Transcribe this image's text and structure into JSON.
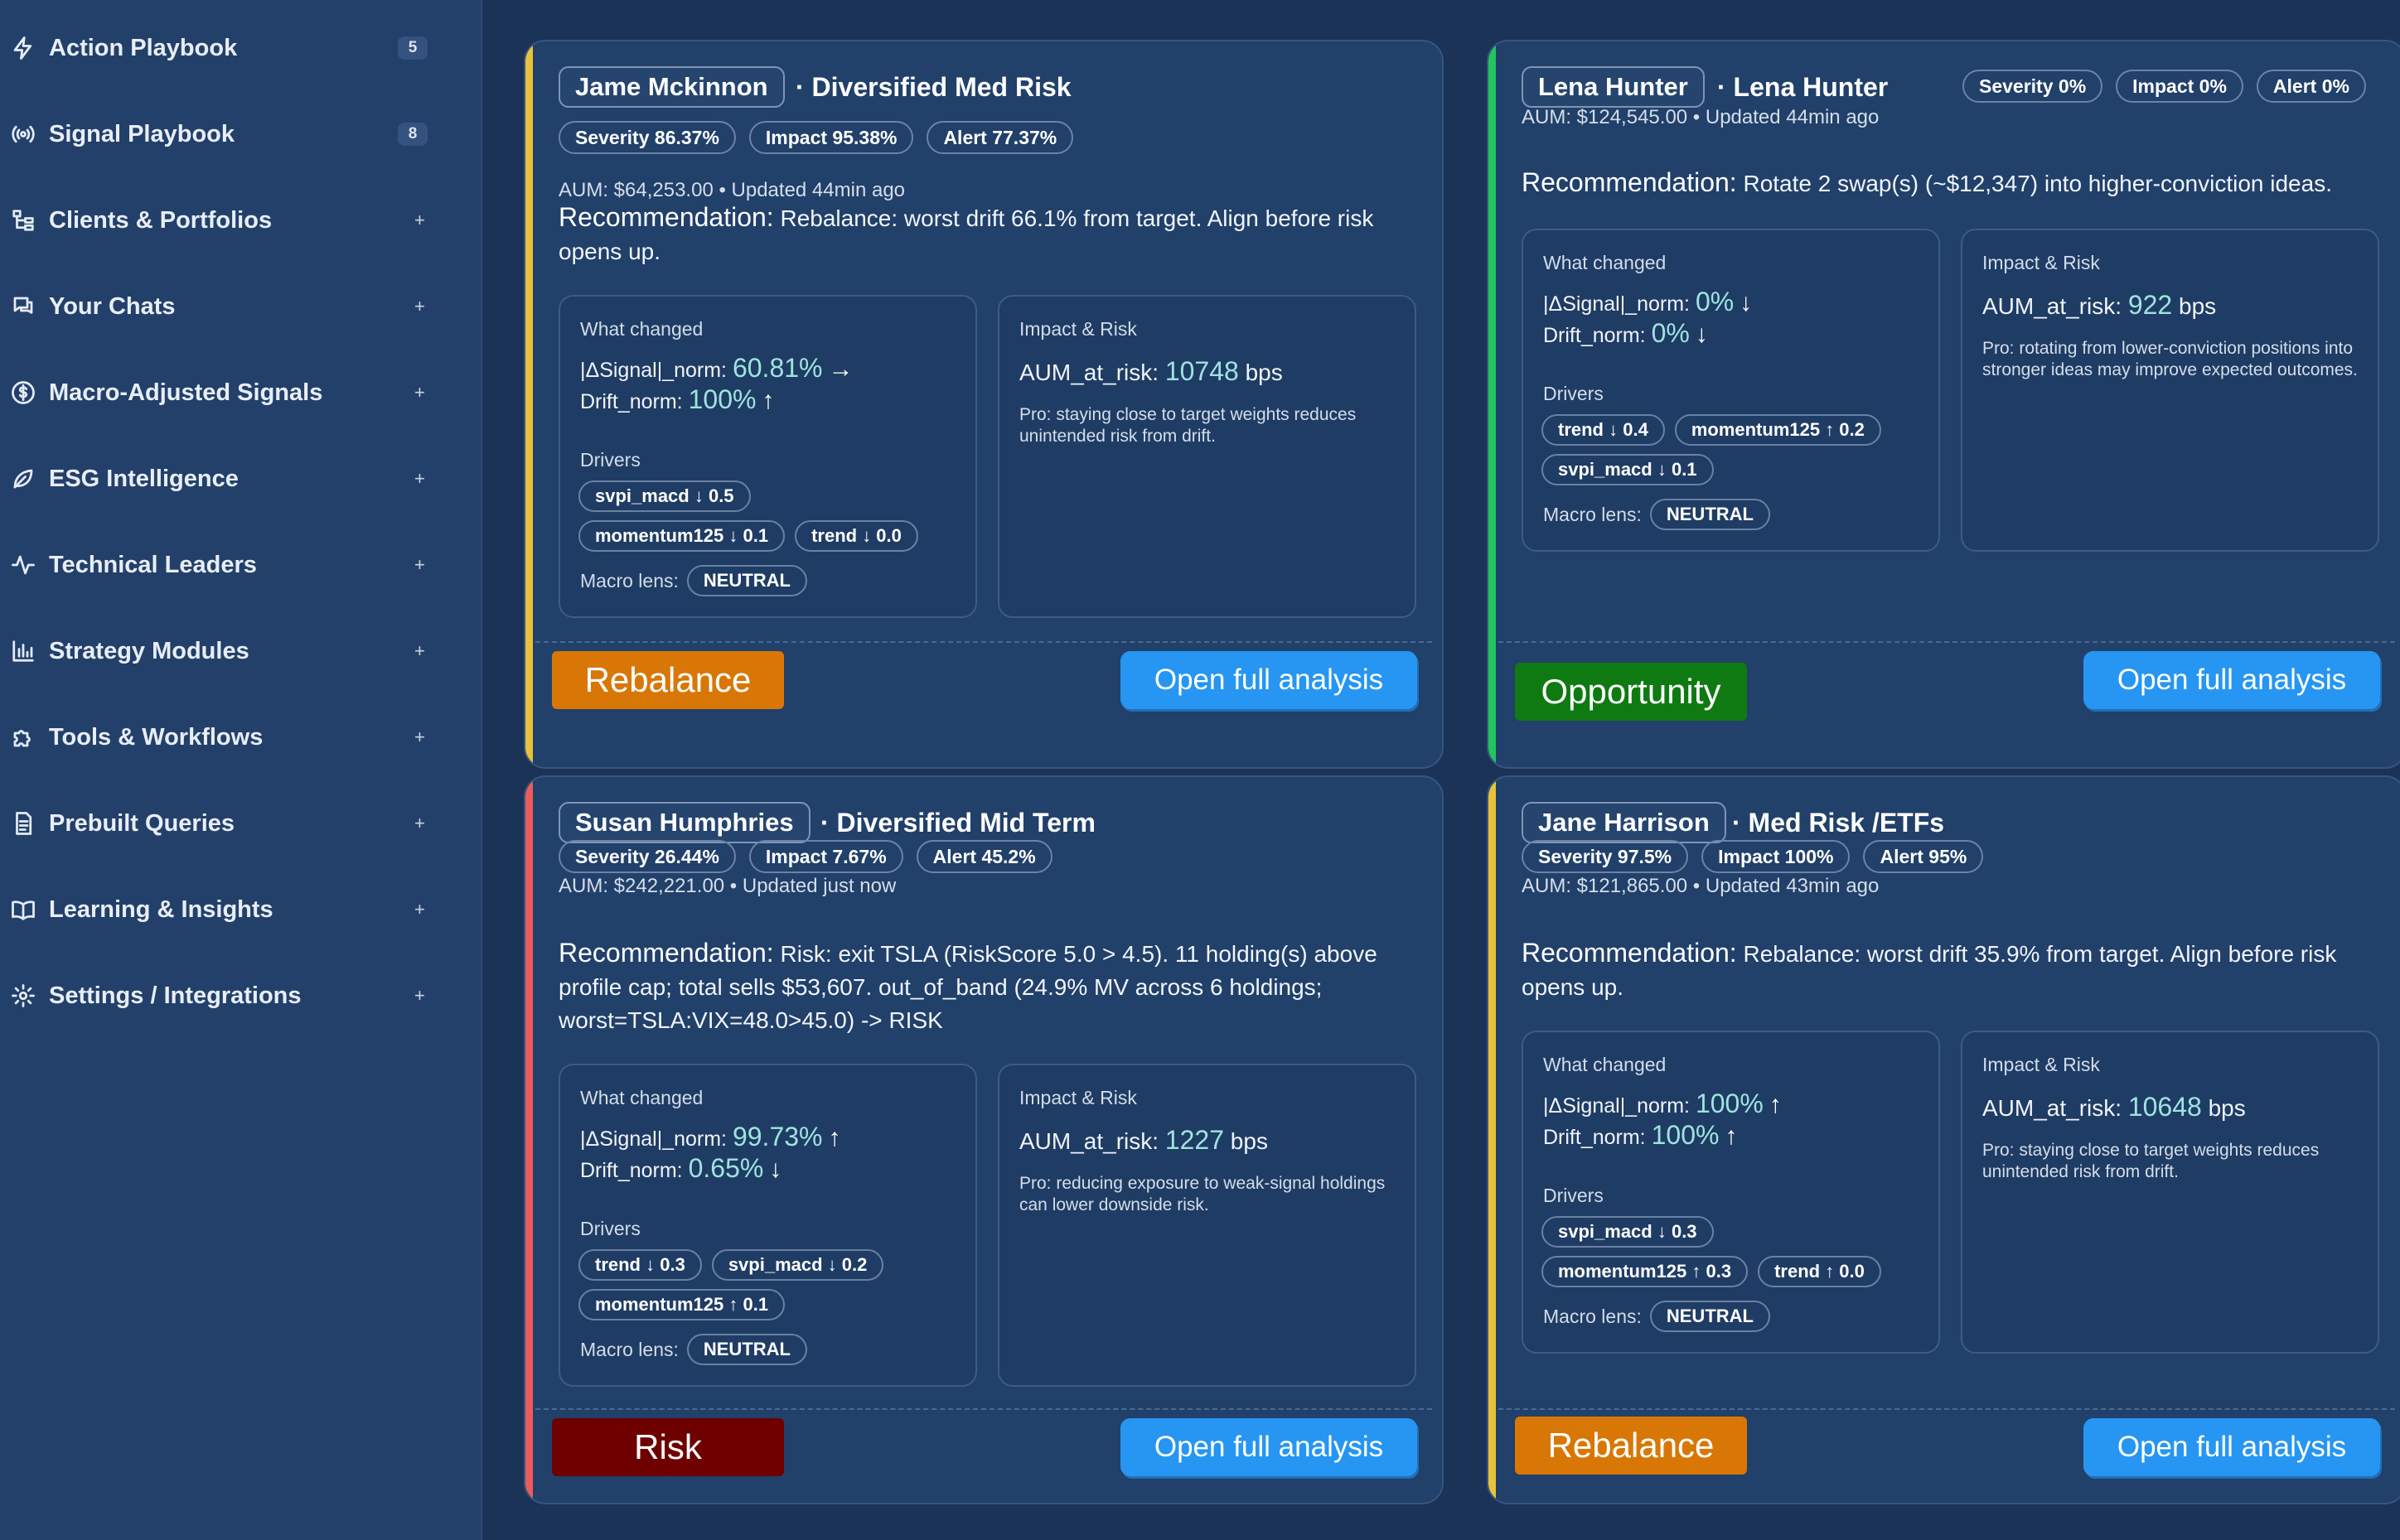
{
  "sidebar": {
    "items": [
      {
        "label": "Action Playbook",
        "icon": "bolt-icon",
        "badge": "5"
      },
      {
        "label": "Signal Playbook",
        "icon": "broadcast-icon",
        "badge": "8"
      },
      {
        "label": "Clients & Portfolios",
        "icon": "tree-icon",
        "badge": "+"
      },
      {
        "label": "Your Chats",
        "icon": "chat-icon",
        "badge": "+"
      },
      {
        "label": "Macro-Adjusted Signals",
        "icon": "dollar-icon",
        "badge": "+"
      },
      {
        "label": "ESG Intelligence",
        "icon": "leaf-icon",
        "badge": "+"
      },
      {
        "label": "Technical Leaders",
        "icon": "pulse-icon",
        "badge": "+"
      },
      {
        "label": "Strategy Modules",
        "icon": "bar-chart-icon",
        "badge": "+"
      },
      {
        "label": "Tools & Workflows",
        "icon": "puzzle-icon",
        "badge": "+"
      },
      {
        "label": "Prebuilt Queries",
        "icon": "document-icon",
        "badge": "+"
      },
      {
        "label": "Learning & Insights",
        "icon": "book-icon",
        "badge": "+"
      },
      {
        "label": "Settings / Integrations",
        "icon": "gear-icon",
        "badge": "+"
      }
    ]
  },
  "labels": {
    "recommendation": "Recommendation:",
    "what_changed": "What changed",
    "impact_risk": "Impact & Risk",
    "signal_norm": "|ΔSignal|_norm:",
    "drift_norm": "Drift_norm:",
    "drivers": "Drivers",
    "macro_lens": "Macro lens:",
    "aum_at_risk": "AUM_at_risk:",
    "bps": "bps",
    "open_button": "Open full analysis"
  },
  "cards": [
    {
      "client": "Jame Mckinnon",
      "profile": "· Diversified Med Risk",
      "accent": "#e8c33a",
      "severity": "Severity 86.37%",
      "impact": "Impact 95.38%",
      "alert": "Alert 77.37%",
      "aum": "AUM: $64,253.00 • Updated 44min ago",
      "recommendation": "Rebalance: worst drift 66.1% from target. Align before risk opens up.",
      "signal_value": "60.81%",
      "signal_arrow": "→",
      "drift_value": "100%",
      "drift_arrow": "↑",
      "drivers_row1": [
        "svpi_macd ↓ 0.5"
      ],
      "drivers_row2": [
        "momentum125 ↓ 0.1",
        "trend ↓ 0.0"
      ],
      "macro": "NEUTRAL",
      "aum_at_risk": "10748",
      "impact_note": "Pro: staying close to target weights reduces unintended risk from drift.",
      "status": "Rebalance",
      "status_color": "#d97706",
      "status_text_color": "#ffffff"
    },
    {
      "client": "Lena Hunter",
      "profile": "· Lena Hunter",
      "accent": "#22c55e",
      "severity": "Severity 0%",
      "impact": "Impact 0%",
      "alert": "Alert 0%",
      "aum": "AUM: $124,545.00 • Updated 44min ago",
      "recommendation": "Rotate 2 swap(s) (~$12,347) into higher-conviction ideas.",
      "signal_value": "0%",
      "signal_arrow": "↓",
      "drift_value": "0%",
      "drift_arrow": "↓",
      "drivers_row1": [
        "trend ↓ 0.4",
        "momentum125 ↑ 0.2"
      ],
      "drivers_row2": [
        "svpi_macd ↓ 0.1"
      ],
      "macro": "NEUTRAL",
      "aum_at_risk": "922",
      "impact_note": "Pro: rotating from lower-conviction positions into stronger ideas may improve expected outcomes.",
      "status": "Opportunity",
      "status_color": "#0f7a12",
      "status_text_color": "#ffffff"
    },
    {
      "client": "Susan Humphries",
      "profile": "· Diversified Mid Term",
      "accent": "#ef5b5b",
      "severity": "Severity 26.44%",
      "impact": "Impact 7.67%",
      "alert": "Alert 45.2%",
      "aum": "AUM: $242,221.00 • Updated just now",
      "recommendation": "Risk: exit TSLA (RiskScore 5.0 > 4.5). 11 holding(s) above profile cap; total sells $53,607. out_of_band (24.9% MV across 6 holdings; worst=TSLA:VIX=48.0>45.0) -> RISK",
      "signal_value": "99.73%",
      "signal_arrow": "↑",
      "drift_value": "0.65%",
      "drift_arrow": "↓",
      "drivers_row1": [
        "trend ↓ 0.3",
        "svpi_macd ↓ 0.2"
      ],
      "drivers_row2": [
        "momentum125 ↑ 0.1"
      ],
      "macro": "NEUTRAL",
      "aum_at_risk": "1227",
      "impact_note": "Pro: reducing exposure to weak-signal holdings can lower downside risk.",
      "status": "Risk",
      "status_color": "#6e0000",
      "status_text_color": "#ffffff"
    },
    {
      "client": "Jane Harrison",
      "profile": "· Med Risk /ETFs",
      "accent": "#e8c33a",
      "severity": "Severity 97.5%",
      "impact": "Impact 100%",
      "alert": "Alert 95%",
      "aum": "AUM: $121,865.00 • Updated 43min ago",
      "recommendation": "Rebalance: worst drift 35.9% from target. Align before risk opens up.",
      "signal_value": "100%",
      "signal_arrow": "↑",
      "drift_value": "100%",
      "drift_arrow": "↑",
      "drivers_row1": [
        "svpi_macd ↓ 0.3"
      ],
      "drivers_row2": [
        "momentum125 ↑ 0.3",
        "trend ↑ 0.0"
      ],
      "macro": "NEUTRAL",
      "aum_at_risk": "10648",
      "impact_note": "Pro: staying close to target weights reduces unintended risk from drift.",
      "status": "Rebalance",
      "status_color": "#d97706",
      "status_text_color": "#ffffff"
    }
  ]
}
